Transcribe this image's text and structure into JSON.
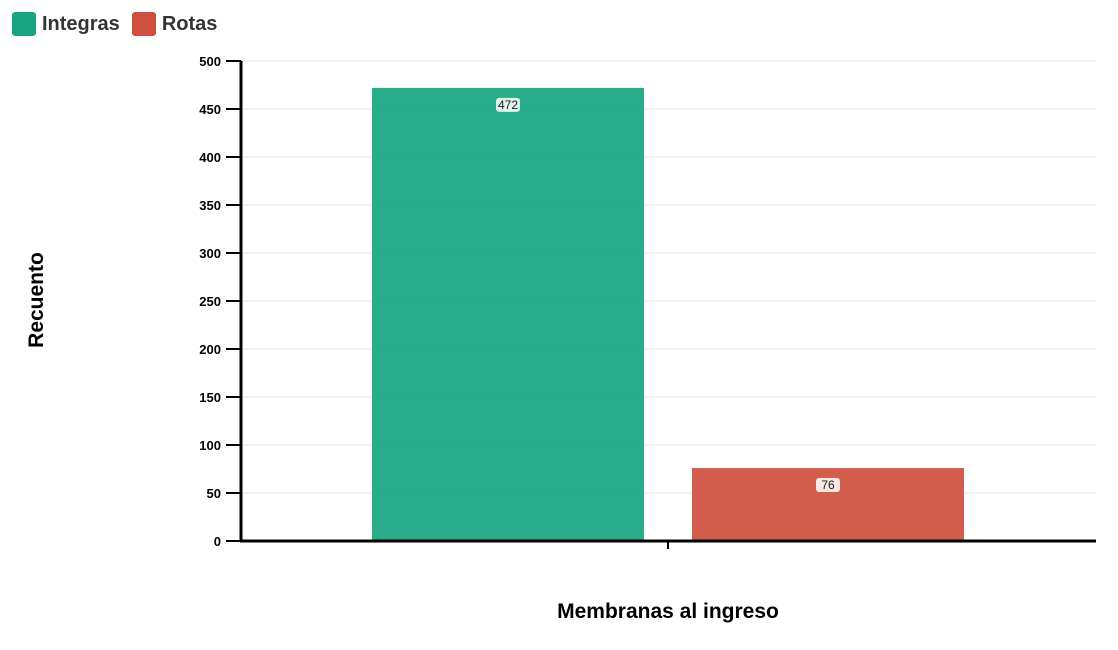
{
  "chart_data": {
    "type": "bar",
    "series": [
      {
        "name": "Integras",
        "values": [
          472
        ],
        "color": "#16a57f"
      },
      {
        "name": "Rotas",
        "values": [
          76
        ],
        "color": "#cf4f3e"
      }
    ],
    "xlabel": "Membranas al ingreso",
    "ylabel": "Recuento",
    "ylim": [
      0,
      500
    ],
    "yticks": [
      "0",
      "50",
      "100",
      "150",
      "200",
      "250",
      "300",
      "350",
      "400",
      "450",
      "500"
    ],
    "data_labels": [
      "472",
      "76"
    ],
    "grid": true,
    "legend_position": "top-left"
  }
}
